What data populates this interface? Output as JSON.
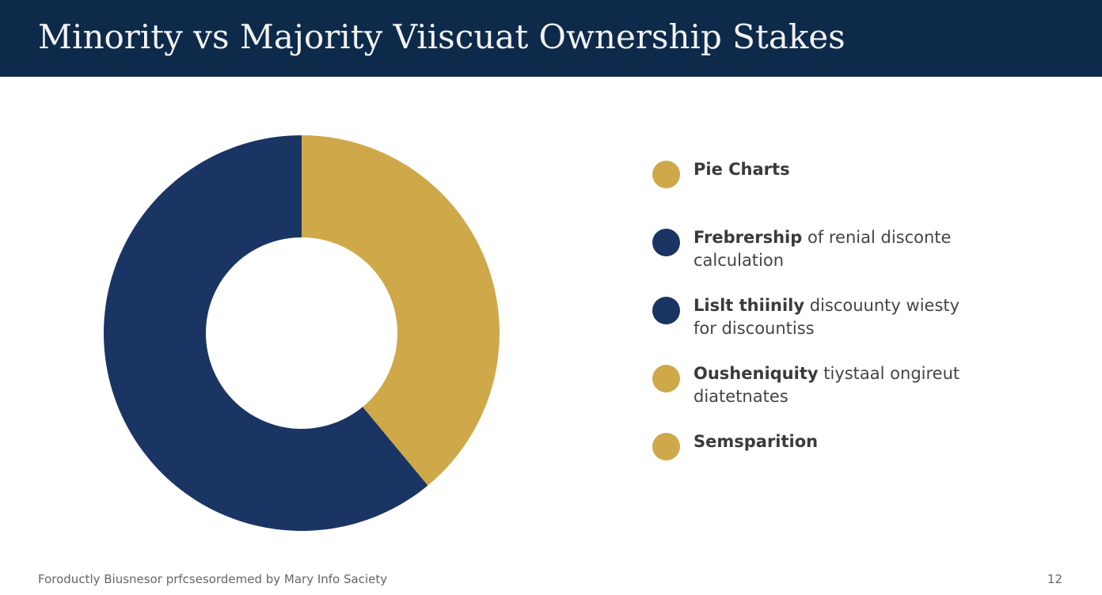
{
  "title": "Minority vs Majority Viiscuat Ownership Stakes",
  "chart_data": {
    "type": "donut",
    "categories": [
      null,
      null
    ],
    "values": [
      39,
      61
    ],
    "colors": [
      "#cfa84a",
      "#1a3563"
    ],
    "legend": [
      {
        "label": "Pie Charts",
        "color": "#cfa84a"
      },
      {
        "label": "Frebrership",
        "detail": "of renial disconte calculation",
        "color": "#1a3563"
      },
      {
        "label": "Lislt thiinily",
        "detail": "discouunty wiesty for discountiss",
        "color": "#1a3563"
      },
      {
        "label": "Ousheniquity",
        "detail": "tiystaal ongireut diatetnates",
        "color": "#cfa84a"
      },
      {
        "label": "Semsparition",
        "color": "#cfa84a"
      }
    ]
  },
  "footer": "Foroductly Biusnesor prfcsesordemed by Mary Info Saciety",
  "page_number": 12
}
